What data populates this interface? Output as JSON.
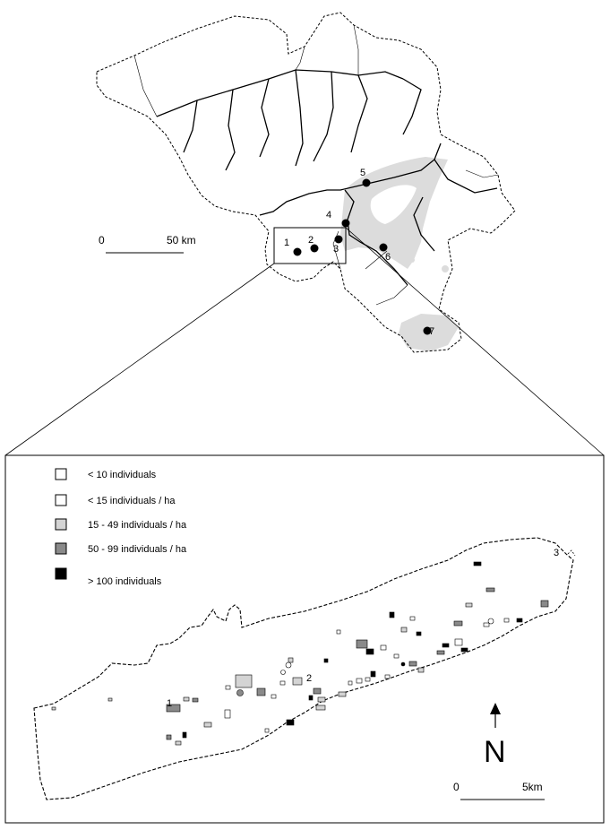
{
  "overview_map": {
    "sites": [
      {
        "id": "1",
        "label": "1"
      },
      {
        "id": "2",
        "label": "2"
      },
      {
        "id": "3",
        "label": "3"
      },
      {
        "id": "4",
        "label": "4"
      },
      {
        "id": "5",
        "label": "5"
      },
      {
        "id": "6",
        "label": "6"
      },
      {
        "id": "7",
        "label": "7"
      }
    ],
    "scale": {
      "start_label": "0",
      "end_label": "50 km"
    }
  },
  "detail_map": {
    "legend": [
      {
        "label": "< 10 individuals",
        "color": "#ffffff"
      },
      {
        "label": "< 15 individuals / ha",
        "color": "#ffffff"
      },
      {
        "label": "15 -  49 individuals / ha",
        "color": "#d4d4d4"
      },
      {
        "label": "50 - 99 individuals / ha",
        "color": "#8a8a8a"
      },
      {
        "label": ">  100 individuals",
        "color": "#000000"
      }
    ],
    "site_labels": [
      {
        "id": "1",
        "label": "1"
      },
      {
        "id": "2",
        "label": "2"
      },
      {
        "id": "3",
        "label": "3"
      }
    ],
    "north_label": "N",
    "scale": {
      "start_label": "0",
      "end_label": "5km"
    }
  }
}
